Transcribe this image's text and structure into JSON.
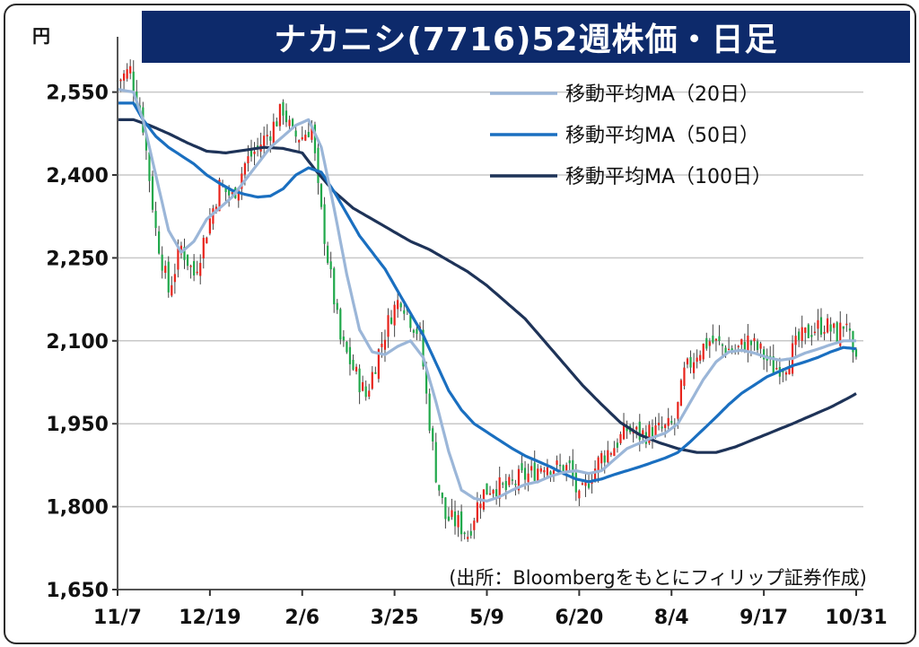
{
  "header": {
    "title": "ナカニシ(7716)52週株価・日足",
    "unit": "円"
  },
  "source": "(出所：Bloombergをもとにフィリップ証券作成)",
  "colors": {
    "title_bg": "#0d2a6b",
    "up": "#e8231b",
    "down": "#1fa84a",
    "ma20": "#9bb6d8",
    "ma50": "#1a6fc0",
    "ma100": "#1e3358",
    "grid": "#c8c8c8"
  },
  "chart_data": {
    "type": "candlestick",
    "title": "ナカニシ(7716)52週株価・日足",
    "ylabel": "円",
    "ylim": [
      1650,
      2650
    ],
    "y_ticks": [
      {
        "value": 2550,
        "label": "2,550"
      },
      {
        "value": 2400,
        "label": "2,400"
      },
      {
        "value": 2250,
        "label": "2,250"
      },
      {
        "value": 2100,
        "label": "2,100"
      },
      {
        "value": 1950,
        "label": "1,950"
      },
      {
        "value": 1800,
        "label": "1,800"
      },
      {
        "value": 1650,
        "label": "1,650"
      }
    ],
    "x_ticks": [
      {
        "index": 0,
        "label": "11/7"
      },
      {
        "index": 29,
        "label": "12/19"
      },
      {
        "index": 58,
        "label": "2/6"
      },
      {
        "index": 87,
        "label": "3/25"
      },
      {
        "index": 116,
        "label": "5/9"
      },
      {
        "index": 145,
        "label": "6/20"
      },
      {
        "index": 174,
        "label": "8/4"
      },
      {
        "index": 203,
        "label": "9/17"
      },
      {
        "index": 232,
        "label": "10/31"
      }
    ],
    "grid": true,
    "legend_position": "top-right",
    "legend": [
      {
        "key": "ma20",
        "label": "移動平均MA（20日）"
      },
      {
        "key": "ma50",
        "label": "移動平均MA（50日）"
      },
      {
        "key": "ma100",
        "label": "移動平均MA（100日）"
      }
    ],
    "close_anchors": [
      [
        0,
        2570
      ],
      [
        4,
        2590
      ],
      [
        8,
        2490
      ],
      [
        12,
        2300
      ],
      [
        16,
        2190
      ],
      [
        20,
        2270
      ],
      [
        24,
        2220
      ],
      [
        28,
        2300
      ],
      [
        32,
        2380
      ],
      [
        36,
        2360
      ],
      [
        40,
        2420
      ],
      [
        44,
        2450
      ],
      [
        48,
        2480
      ],
      [
        52,
        2520
      ],
      [
        55,
        2470
      ],
      [
        58,
        2470
      ],
      [
        61,
        2490
      ],
      [
        63,
        2370
      ],
      [
        66,
        2250
      ],
      [
        70,
        2100
      ],
      [
        74,
        2050
      ],
      [
        78,
        2000
      ],
      [
        82,
        2080
      ],
      [
        86,
        2150
      ],
      [
        89,
        2180
      ],
      [
        92,
        2140
      ],
      [
        95,
        2110
      ],
      [
        97,
        2000
      ],
      [
        100,
        1860
      ],
      [
        103,
        1780
      ],
      [
        107,
        1770
      ],
      [
        110,
        1750
      ],
      [
        114,
        1820
      ],
      [
        118,
        1840
      ],
      [
        122,
        1830
      ],
      [
        126,
        1850
      ],
      [
        130,
        1860
      ],
      [
        134,
        1880
      ],
      [
        138,
        1870
      ],
      [
        142,
        1870
      ],
      [
        145,
        1810
      ],
      [
        148,
        1850
      ],
      [
        152,
        1890
      ],
      [
        156,
        1910
      ],
      [
        160,
        1940
      ],
      [
        164,
        1930
      ],
      [
        168,
        1935
      ],
      [
        172,
        1940
      ],
      [
        175,
        1950
      ],
      [
        178,
        2040
      ],
      [
        182,
        2080
      ],
      [
        186,
        2100
      ],
      [
        190,
        2090
      ],
      [
        194,
        2080
      ],
      [
        198,
        2100
      ],
      [
        202,
        2080
      ],
      [
        206,
        2050
      ],
      [
        210,
        2060
      ],
      [
        214,
        2100
      ],
      [
        218,
        2120
      ],
      [
        222,
        2130
      ],
      [
        226,
        2110
      ],
      [
        229,
        2140
      ],
      [
        231,
        2060
      ],
      [
        233,
        2050
      ]
    ],
    "ma20_anchors": [
      [
        0,
        2555
      ],
      [
        5,
        2550
      ],
      [
        8,
        2500
      ],
      [
        12,
        2400
      ],
      [
        16,
        2300
      ],
      [
        20,
        2260
      ],
      [
        24,
        2280
      ],
      [
        28,
        2320
      ],
      [
        32,
        2340
      ],
      [
        36,
        2360
      ],
      [
        40,
        2390
      ],
      [
        44,
        2420
      ],
      [
        48,
        2450
      ],
      [
        52,
        2470
      ],
      [
        56,
        2490
      ],
      [
        60,
        2500
      ],
      [
        64,
        2450
      ],
      [
        68,
        2340
      ],
      [
        72,
        2220
      ],
      [
        76,
        2120
      ],
      [
        80,
        2080
      ],
      [
        84,
        2075
      ],
      [
        88,
        2090
      ],
      [
        92,
        2100
      ],
      [
        96,
        2070
      ],
      [
        100,
        1990
      ],
      [
        104,
        1900
      ],
      [
        108,
        1830
      ],
      [
        112,
        1815
      ],
      [
        116,
        1810
      ],
      [
        120,
        1818
      ],
      [
        124,
        1830
      ],
      [
        128,
        1840
      ],
      [
        132,
        1845
      ],
      [
        136,
        1855
      ],
      [
        140,
        1862
      ],
      [
        144,
        1865
      ],
      [
        148,
        1860
      ],
      [
        152,
        1865
      ],
      [
        156,
        1885
      ],
      [
        160,
        1905
      ],
      [
        164,
        1915
      ],
      [
        168,
        1925
      ],
      [
        172,
        1933
      ],
      [
        176,
        1950
      ],
      [
        180,
        1990
      ],
      [
        184,
        2030
      ],
      [
        188,
        2062
      ],
      [
        192,
        2080
      ],
      [
        196,
        2083
      ],
      [
        200,
        2078
      ],
      [
        204,
        2070
      ],
      [
        208,
        2065
      ],
      [
        212,
        2068
      ],
      [
        216,
        2078
      ],
      [
        220,
        2085
      ],
      [
        224,
        2093
      ],
      [
        228,
        2100
      ],
      [
        233,
        2100
      ]
    ],
    "ma50_anchors": [
      [
        0,
        2530
      ],
      [
        5,
        2530
      ],
      [
        8,
        2500
      ],
      [
        12,
        2470
      ],
      [
        16,
        2450
      ],
      [
        20,
        2435
      ],
      [
        24,
        2420
      ],
      [
        28,
        2400
      ],
      [
        32,
        2385
      ],
      [
        36,
        2372
      ],
      [
        40,
        2365
      ],
      [
        44,
        2360
      ],
      [
        48,
        2362
      ],
      [
        52,
        2375
      ],
      [
        56,
        2400
      ],
      [
        60,
        2413
      ],
      [
        64,
        2405
      ],
      [
        68,
        2370
      ],
      [
        72,
        2330
      ],
      [
        76,
        2290
      ],
      [
        80,
        2260
      ],
      [
        84,
        2230
      ],
      [
        88,
        2190
      ],
      [
        92,
        2150
      ],
      [
        96,
        2110
      ],
      [
        100,
        2060
      ],
      [
        104,
        2010
      ],
      [
        108,
        1975
      ],
      [
        112,
        1950
      ],
      [
        116,
        1935
      ],
      [
        120,
        1920
      ],
      [
        124,
        1905
      ],
      [
        128,
        1892
      ],
      [
        132,
        1882
      ],
      [
        136,
        1872
      ],
      [
        140,
        1860
      ],
      [
        144,
        1850
      ],
      [
        148,
        1845
      ],
      [
        152,
        1850
      ],
      [
        156,
        1858
      ],
      [
        160,
        1865
      ],
      [
        164,
        1872
      ],
      [
        168,
        1880
      ],
      [
        172,
        1888
      ],
      [
        176,
        1898
      ],
      [
        180,
        1918
      ],
      [
        184,
        1940
      ],
      [
        188,
        1962
      ],
      [
        192,
        1985
      ],
      [
        196,
        2005
      ],
      [
        200,
        2020
      ],
      [
        204,
        2035
      ],
      [
        208,
        2045
      ],
      [
        212,
        2055
      ],
      [
        216,
        2062
      ],
      [
        220,
        2070
      ],
      [
        224,
        2080
      ],
      [
        228,
        2088
      ],
      [
        233,
        2085
      ]
    ],
    "ma100_anchors": [
      [
        0,
        2500
      ],
      [
        5,
        2500
      ],
      [
        10,
        2490
      ],
      [
        16,
        2475
      ],
      [
        22,
        2458
      ],
      [
        28,
        2443
      ],
      [
        34,
        2440
      ],
      [
        40,
        2445
      ],
      [
        46,
        2450
      ],
      [
        52,
        2448
      ],
      [
        58,
        2440
      ],
      [
        62,
        2410
      ],
      [
        68,
        2370
      ],
      [
        74,
        2340
      ],
      [
        80,
        2320
      ],
      [
        86,
        2300
      ],
      [
        92,
        2280
      ],
      [
        98,
        2265
      ],
      [
        104,
        2245
      ],
      [
        110,
        2225
      ],
      [
        116,
        2200
      ],
      [
        122,
        2170
      ],
      [
        128,
        2140
      ],
      [
        134,
        2100
      ],
      [
        140,
        2060
      ],
      [
        146,
        2020
      ],
      [
        152,
        1985
      ],
      [
        158,
        1952
      ],
      [
        164,
        1930
      ],
      [
        170,
        1916
      ],
      [
        176,
        1905
      ],
      [
        182,
        1898
      ],
      [
        188,
        1898
      ],
      [
        194,
        1908
      ],
      [
        200,
        1922
      ],
      [
        206,
        1936
      ],
      [
        212,
        1950
      ],
      [
        218,
        1965
      ],
      [
        224,
        1980
      ],
      [
        230,
        1998
      ],
      [
        233,
        2008
      ]
    ]
  }
}
